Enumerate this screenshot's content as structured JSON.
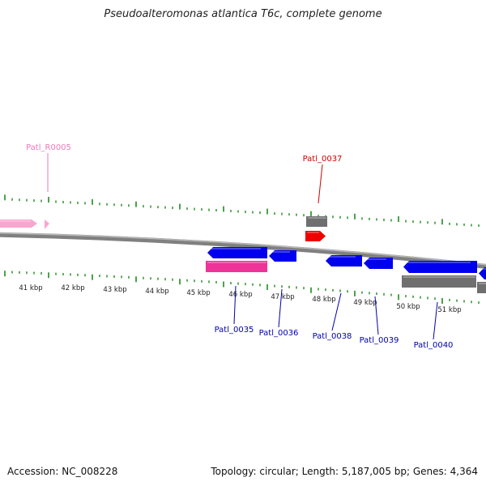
{
  "header": {
    "title": "Pseudoalteromonas atlantica T6c, complete genome"
  },
  "footer": {
    "accession": "Accession: NC_008228",
    "summary": "Topology: circular; Length: 5,187,005 bp; Genes: 4,364"
  },
  "colors": {
    "backbone": "#808080",
    "tick": "#1f8a1f",
    "cds": "#0000ee",
    "rna_gene": "#ee3399",
    "rna_feature": "#f7a6cf",
    "pseudo": "#ee0000",
    "gene_grey": "#6f6f6f"
  },
  "scale": {
    "kbp_labels": [
      "41 kbp",
      "42 kbp",
      "43 kbp",
      "44 kbp",
      "45 kbp",
      "46 kbp",
      "47 kbp",
      "48 kbp",
      "49 kbp",
      "50 kbp",
      "51 kbp"
    ]
  },
  "features": [
    {
      "id": "rna-left",
      "kind": "rna_feature",
      "strand": "+"
    },
    {
      "id": "patl-0037-gene",
      "kind": "gene_grey",
      "strand": "+"
    },
    {
      "id": "patl-0037-cds",
      "kind": "pseudo",
      "strand": "+"
    },
    {
      "id": "patl-0035-cds",
      "kind": "cds",
      "strand": "-"
    },
    {
      "id": "patl-0035-gene",
      "kind": "rna_gene",
      "strand": "-"
    },
    {
      "id": "patl-0036-cds",
      "kind": "cds",
      "strand": "-"
    },
    {
      "id": "patl-0038-cds",
      "kind": "cds",
      "strand": "-"
    },
    {
      "id": "patl-0039-cds",
      "kind": "cds",
      "strand": "-"
    },
    {
      "id": "patl-0040-cds",
      "kind": "cds",
      "strand": "-"
    },
    {
      "id": "patl-0040-gene",
      "kind": "gene_grey",
      "strand": "-"
    },
    {
      "id": "patl-0041-cds",
      "kind": "cds",
      "strand": "-"
    },
    {
      "id": "patl-0041-gene",
      "kind": "gene_grey",
      "strand": "-"
    }
  ],
  "labels": [
    {
      "id": "patl-r0005",
      "text": "Patl_R0005",
      "color": "#ee77bb"
    },
    {
      "id": "patl-0037",
      "text": "Patl_0037",
      "color": "#cc0000"
    },
    {
      "id": "patl-0035",
      "text": "Patl_0035",
      "color": "#0000aa"
    },
    {
      "id": "patl-0036",
      "text": "Patl_0036",
      "color": "#0000aa"
    },
    {
      "id": "patl-0038",
      "text": "Patl_0038",
      "color": "#0000aa"
    },
    {
      "id": "patl-0039",
      "text": "Patl_0039",
      "color": "#0000aa"
    },
    {
      "id": "patl-0040",
      "text": "Patl_0040",
      "color": "#0000aa"
    }
  ]
}
